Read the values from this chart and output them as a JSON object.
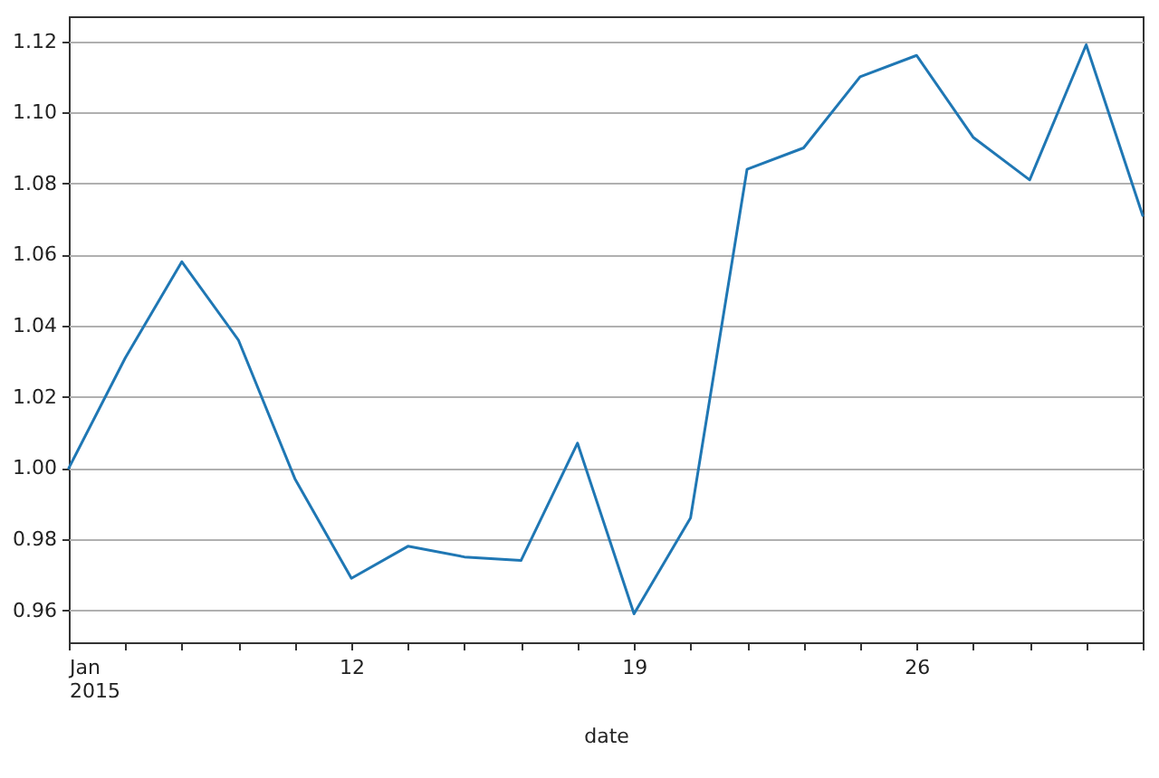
{
  "chart_data": {
    "type": "line",
    "xlabel": "date",
    "categories": [
      "Jan 2015",
      null,
      null,
      null,
      null,
      "12",
      null,
      null,
      null,
      null,
      "19",
      null,
      null,
      null,
      null,
      "26",
      null,
      null,
      null,
      null
    ],
    "series": [
      {
        "color": "#1f77b4",
        "values": [
          1.0,
          1.031,
          1.058,
          1.036,
          0.997,
          0.969,
          0.978,
          0.975,
          0.974,
          1.007,
          0.959,
          0.986,
          1.084,
          1.09,
          1.11,
          1.116,
          1.093,
          1.081,
          1.119,
          1.071
        ]
      }
    ],
    "ylim": [
      0.951,
      1.127
    ],
    "yticks": [
      0.96,
      0.98,
      {
        "value": 1.0,
        "label": "1.00"
      },
      1.02,
      1.04,
      1.06,
      1.08,
      {
        "value": 1.1,
        "label": "1.10"
      },
      1.12
    ],
    "grid": "y",
    "marker": "none",
    "line_style": "solid"
  }
}
